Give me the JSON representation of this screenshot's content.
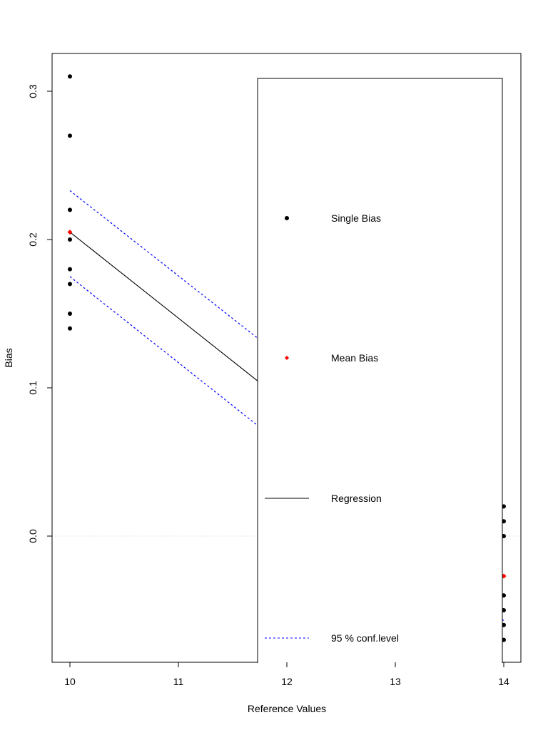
{
  "chart_data": {
    "type": "scatter",
    "title": "",
    "xlabel": "Reference Values",
    "ylabel": "Bias",
    "xlim": [
      9.83,
      14.16
    ],
    "ylim": [
      -0.085,
      0.325
    ],
    "x_ticks": [
      10,
      11,
      12,
      13,
      14
    ],
    "x_tick_labels": [
      "10",
      "11",
      "12",
      "13",
      "14"
    ],
    "y_ticks": [
      0.0,
      0.1,
      0.2,
      0.3
    ],
    "y_tick_labels": [
      "0.0",
      "0.1",
      "0.2",
      "0.3"
    ],
    "grid": false,
    "reference_line": {
      "y": 0.0,
      "style": "dotted",
      "color": "#dddddd"
    },
    "series": [
      {
        "name": "Single Bias",
        "kind": "points",
        "color": "#000000",
        "marker": "circle",
        "points": [
          [
            10,
            0.31
          ],
          [
            10,
            0.27
          ],
          [
            10,
            0.22
          ],
          [
            10,
            0.2
          ],
          [
            10,
            0.18
          ],
          [
            10,
            0.17
          ],
          [
            10,
            0.15
          ],
          [
            10,
            0.14
          ],
          [
            14,
            0.02
          ],
          [
            14,
            0.01
          ],
          [
            14,
            0.0
          ],
          [
            14,
            -0.04
          ],
          [
            14,
            -0.05
          ],
          [
            14,
            -0.06
          ],
          [
            14,
            -0.07
          ]
        ]
      },
      {
        "name": "Mean Bias",
        "kind": "points",
        "color": "#ff0000",
        "marker": "diamond",
        "points": [
          [
            10,
            0.205
          ],
          [
            14,
            -0.027
          ]
        ]
      },
      {
        "name": "Regression",
        "kind": "line",
        "color": "#000000",
        "style": "solid",
        "points": [
          [
            10,
            0.205
          ],
          [
            14,
            -0.027
          ]
        ]
      },
      {
        "name": "95 % conf.level upper",
        "kind": "line",
        "color": "#0000ff",
        "style": "dashed",
        "points": [
          [
            10,
            0.233
          ],
          [
            14,
            0.003
          ]
        ]
      },
      {
        "name": "95 % conf.level lower",
        "kind": "line",
        "color": "#0000ff",
        "style": "dashed",
        "points": [
          [
            10,
            0.175
          ],
          [
            14,
            -0.057
          ]
        ]
      }
    ],
    "legend": {
      "position": "center-right (overlapping plot)",
      "entries": [
        {
          "label": "Single Bias",
          "symbol": "point",
          "color": "#000000"
        },
        {
          "label": "Mean Bias",
          "symbol": "diamond",
          "color": "#ff0000"
        },
        {
          "label": "Regression",
          "symbol": "line-solid",
          "color": "#000000"
        },
        {
          "label": "95 % conf.level",
          "symbol": "line-dashed",
          "color": "#0000ff"
        }
      ]
    }
  }
}
